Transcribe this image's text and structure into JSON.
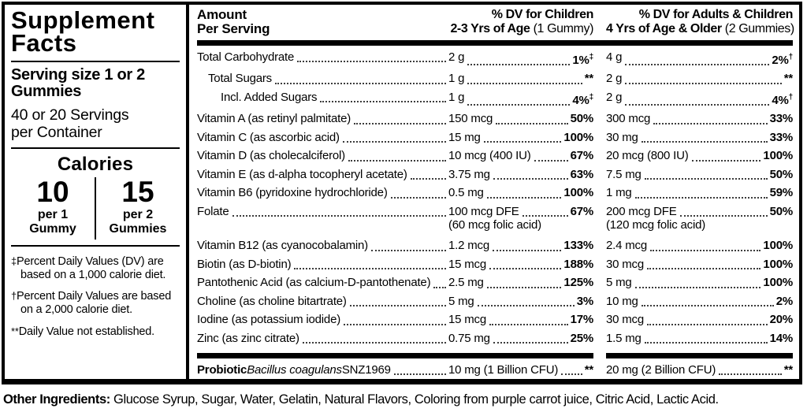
{
  "panel": {
    "title": "Supplement Facts",
    "serving_size": "Serving size 1 or 2 Gummies",
    "servings_per_container": "40 or 20 Servings per Container",
    "calories": {
      "heading": "Calories",
      "col1": {
        "value": "10",
        "sub1": "per 1",
        "sub2": "Gummy"
      },
      "col2": {
        "value": "15",
        "sub1": "per 2",
        "sub2": "Gummies"
      }
    },
    "footnotes": [
      {
        "symbol": "‡",
        "text": "Percent Daily Values (DV) are based on a 1,000 calorie diet."
      },
      {
        "symbol": "†",
        "text": "Percent Daily Values are based on a 2,000 calorie diet."
      },
      {
        "symbol": "**",
        "text": "Daily Value not established."
      }
    ]
  },
  "table": {
    "header": {
      "col1_line1": "Amount",
      "col1_line2": "Per Serving",
      "col2_line1": "% DV for Children",
      "col2_line2_bold": "2-3 Yrs of Age",
      "col2_line2_normal": " (1 Gummy)",
      "col3_line1": "% DV for Adults & Children",
      "col3_line2_bold": "4 Yrs of Age & Older",
      "col3_line2_normal": " (2 Gummies)"
    },
    "rows": [
      {
        "name": "Total Carbohydrate",
        "indent": 0,
        "children_amount": "2 g",
        "children_dv": "1%",
        "children_sup": "‡",
        "adults_amount": "4 g",
        "adults_dv": "2%",
        "adults_sup": "†"
      },
      {
        "name": "Total Sugars",
        "indent": 1,
        "children_amount": "1 g",
        "children_dv": "**",
        "children_sup": "",
        "adults_amount": "2 g",
        "adults_dv": "**",
        "adults_sup": ""
      },
      {
        "name": "Incl. Added Sugars",
        "indent": 2,
        "children_amount": "1 g",
        "children_dv": "4%",
        "children_sup": "‡",
        "adults_amount": "2 g",
        "adults_dv": "4%",
        "adults_sup": "†"
      },
      {
        "name": "Vitamin A (as retinyl palmitate)",
        "indent": 0,
        "children_amount": "150 mcg",
        "children_dv": "50%",
        "children_sup": "",
        "adults_amount": "300 mcg",
        "adults_dv": "33%",
        "adults_sup": ""
      },
      {
        "name": "Vitamin C (as ascorbic acid)",
        "indent": 0,
        "children_amount": "15 mg",
        "children_dv": "100%",
        "children_sup": "",
        "adults_amount": "30 mg",
        "adults_dv": "33%",
        "adults_sup": ""
      },
      {
        "name": "Vitamin D (as cholecalciferol)",
        "indent": 0,
        "children_amount": "10 mcg (400 IU)",
        "children_dv": "67%",
        "children_sup": "",
        "adults_amount": "20 mcg (800 IU)",
        "adults_dv": "100%",
        "adults_sup": ""
      },
      {
        "name": "Vitamin E (as d-alpha tocopheryl acetate)",
        "indent": 0,
        "children_amount": "3.75 mg",
        "children_dv": "63%",
        "children_sup": "",
        "adults_amount": "7.5 mg",
        "adults_dv": "50%",
        "adults_sup": ""
      },
      {
        "name": "Vitamin B6 (pyridoxine hydrochloride)",
        "indent": 0,
        "children_amount": "0.5 mg",
        "children_dv": "100%",
        "children_sup": "",
        "adults_amount": "1 mg",
        "adults_dv": "59%",
        "adults_sup": ""
      },
      {
        "name": "Folate",
        "indent": 0,
        "children_amount": "100 mcg DFE",
        "children_dv": "67%",
        "children_sup": "",
        "children_sub": "(60 mcg folic acid)",
        "adults_amount": "200 mcg DFE",
        "adults_dv": "50%",
        "adults_sup": "",
        "adults_sub": "(120 mcg folic acid)"
      },
      {
        "name": "Vitamin B12 (as cyanocobalamin)",
        "indent": 0,
        "children_amount": "1.2 mcg",
        "children_dv": "133%",
        "children_sup": "",
        "adults_amount": "2.4 mcg",
        "adults_dv": "100%",
        "adults_sup": ""
      },
      {
        "name": "Biotin (as D-biotin)",
        "indent": 0,
        "children_amount": "15 mcg",
        "children_dv": "188%",
        "children_sup": "",
        "adults_amount": "30 mcg",
        "adults_dv": "100%",
        "adults_sup": ""
      },
      {
        "name": "Pantothenic Acid (as calcium-D-pantothenate)",
        "indent": 0,
        "children_amount": "2.5 mg",
        "children_dv": "125%",
        "children_sup": "",
        "adults_amount": "5 mg",
        "adults_dv": "100%",
        "adults_sup": ""
      },
      {
        "name": "Choline (as choline bitartrate)",
        "indent": 0,
        "children_amount": "5 mg",
        "children_dv": "3%",
        "children_sup": "",
        "adults_amount": "10 mg",
        "adults_dv": "2%",
        "adults_sup": ""
      },
      {
        "name": "Iodine (as potassium iodide)",
        "indent": 0,
        "children_amount": "15 mcg",
        "children_dv": "17%",
        "children_sup": "",
        "adults_amount": "30 mcg",
        "adults_dv": "20%",
        "adults_sup": ""
      },
      {
        "name": "Zinc (as zinc citrate)",
        "indent": 0,
        "children_amount": "0.75 mg",
        "children_dv": "25%",
        "children_sup": "",
        "adults_amount": "1.5 mg",
        "adults_dv": "14%",
        "adults_sup": ""
      }
    ],
    "probiotic": {
      "name_bold": "Probiotic",
      "name_italic": " Bacillus coagulans",
      "name_plain": " SNZ1969",
      "children_amount": "10 mg (1 Billion CFU)",
      "children_dv": "**",
      "adults_amount": "20 mg (2 Billion CFU)",
      "adults_dv": "**"
    }
  },
  "other_ingredients": {
    "label": "Other Ingredients:",
    "text": " Glucose Syrup, Sugar, Water, Gelatin, Natural Flavors, Coloring from purple carrot juice, Citric Acid, Lactic Acid."
  }
}
